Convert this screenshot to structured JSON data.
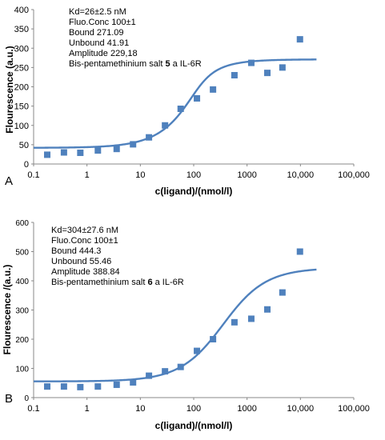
{
  "chart_data": [
    {
      "panel_label": "A",
      "type": "scatter",
      "xscale": "log",
      "xlim": [
        0.1,
        100000
      ],
      "ylim": [
        0,
        400
      ],
      "yticks": [
        0,
        50,
        100,
        150,
        200,
        250,
        300,
        350,
        400
      ],
      "xtick_labels": [
        "0.1",
        "1",
        "10",
        "100",
        "1000",
        "10,000",
        "100,000"
      ],
      "xlabel": "c(ligand)/(nmol/l)",
      "ylabel": "Flourescence (a.u.)",
      "annotation_lines": [
        "Kd=26±2.5 nM",
        "Fluo.Conc 100±1",
        "Bound 271.09",
        "Unbound  41.91",
        "Amplitude 229,18"
      ],
      "annotation_compound_prefix": "Bis-pentamethinium salt ",
      "annotation_compound_number": "5",
      "annotation_compound_suffix": " a IL-6R",
      "color": "#4F81BD",
      "points": {
        "x": [
          0.18,
          0.37,
          0.75,
          1.6,
          3.6,
          7.3,
          14.5,
          29,
          57,
          115,
          230,
          580,
          1200,
          2400,
          4600,
          9800
        ],
        "y": [
          24,
          30,
          29,
          35,
          39,
          51,
          69,
          100,
          143,
          170,
          193,
          230,
          262,
          236,
          250,
          323
        ]
      },
      "fit": {
        "unbound": 41.91,
        "bound": 271.09,
        "kd": 26,
        "fluo_conc": 100
      }
    },
    {
      "panel_label": "B",
      "type": "scatter",
      "xscale": "log",
      "xlim": [
        0.1,
        100000
      ],
      "ylim": [
        0,
        600
      ],
      "yticks": [
        0,
        100,
        200,
        300,
        400,
        500,
        600
      ],
      "xtick_labels": [
        "0.1",
        "1",
        "10",
        "100",
        "1000",
        "10,000",
        "100,000"
      ],
      "xlabel": "c(ligand)/(nmol/l)",
      "ylabel": "Flourescence /(a.u.)",
      "annotation_lines": [
        "Kd=304±27.6 nM",
        "Fluo.Conc 100±1",
        "Bound 444.3",
        "Unbound  55.46",
        "Amplitude 388.84"
      ],
      "annotation_compound_prefix": "Bis-pentamethinium salt ",
      "annotation_compound_number": "6",
      "annotation_compound_suffix": " a IL-6R",
      "color": "#4F81BD",
      "points": {
        "x": [
          0.18,
          0.37,
          0.75,
          1.6,
          3.6,
          7.3,
          14.5,
          29,
          57,
          115,
          230,
          580,
          1200,
          2400,
          4600,
          9800
        ],
        "y": [
          38,
          38,
          36,
          38,
          44,
          52,
          75,
          90,
          105,
          160,
          200,
          258,
          270,
          302,
          360,
          500
        ]
      },
      "fit": {
        "unbound": 55.46,
        "bound": 444.3,
        "kd": 304,
        "fluo_conc": 100
      }
    }
  ]
}
